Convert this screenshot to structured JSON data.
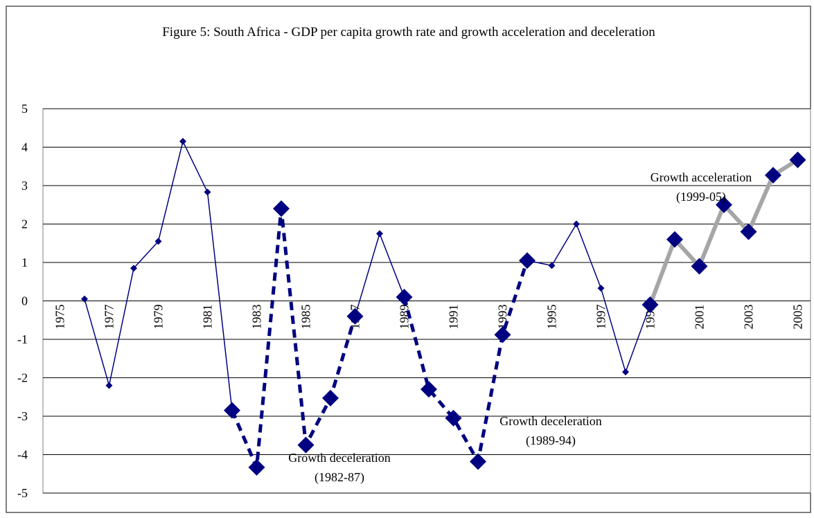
{
  "chart_data": {
    "type": "line",
    "title": "Figure 5: South Africa - GDP per capita growth rate and growth acceleration and deceleration",
    "categories": [
      "1975",
      null,
      "1977",
      null,
      "1979",
      null,
      "1981",
      null,
      "1983",
      null,
      "1985",
      null,
      "1987",
      null,
      "1989",
      null,
      "1991",
      null,
      "1993",
      null,
      "1995",
      null,
      "1997",
      null,
      "1999",
      null,
      "2001",
      null,
      "2003",
      null,
      "2005"
    ],
    "series": [
      {
        "color": "#000080",
        "dash": false,
        "marker": "small",
        "values": [
          null,
          0.05,
          -2.2,
          0.85,
          1.55,
          4.15,
          2.83,
          -2.85,
          null,
          null,
          null,
          null,
          -0.4,
          1.75,
          0.1,
          null,
          null,
          null,
          null,
          1.05,
          0.92,
          2.0,
          0.33,
          -1.85,
          -0.1,
          null,
          null,
          null,
          null,
          null,
          null
        ]
      },
      {
        "color": "#000080",
        "dash": true,
        "marker": "large",
        "values": [
          null,
          null,
          null,
          null,
          null,
          null,
          null,
          -2.85,
          -4.33,
          2.4,
          -3.75,
          -2.53,
          -0.4,
          null,
          0.1,
          -2.3,
          -3.05,
          -4.18,
          -0.88,
          1.05,
          null,
          null,
          null,
          null,
          null,
          null,
          null,
          null,
          null,
          null,
          null
        ]
      },
      {
        "color": "#a6a6a6",
        "dash": false,
        "marker": "large",
        "values": [
          null,
          null,
          null,
          null,
          null,
          null,
          null,
          null,
          null,
          null,
          null,
          null,
          null,
          null,
          null,
          null,
          null,
          null,
          null,
          null,
          null,
          null,
          null,
          null,
          -0.1,
          1.6,
          0.9,
          2.5,
          1.8,
          3.27,
          3.67
        ]
      }
    ],
    "marker_color": "#000080",
    "ylim": [
      -5,
      5
    ],
    "yticks": [
      -5,
      -4,
      -3,
      -2,
      -1,
      0,
      1,
      2,
      3,
      4,
      5
    ],
    "grid": true,
    "annotations": [
      {
        "lines": [
          "Growth deceleration",
          "(1982-87)"
        ]
      },
      {
        "lines": [
          "Growth deceleration",
          "(1989-94)"
        ]
      },
      {
        "lines": [
          "Growth acceleration",
          "(1999-05)"
        ]
      }
    ]
  }
}
